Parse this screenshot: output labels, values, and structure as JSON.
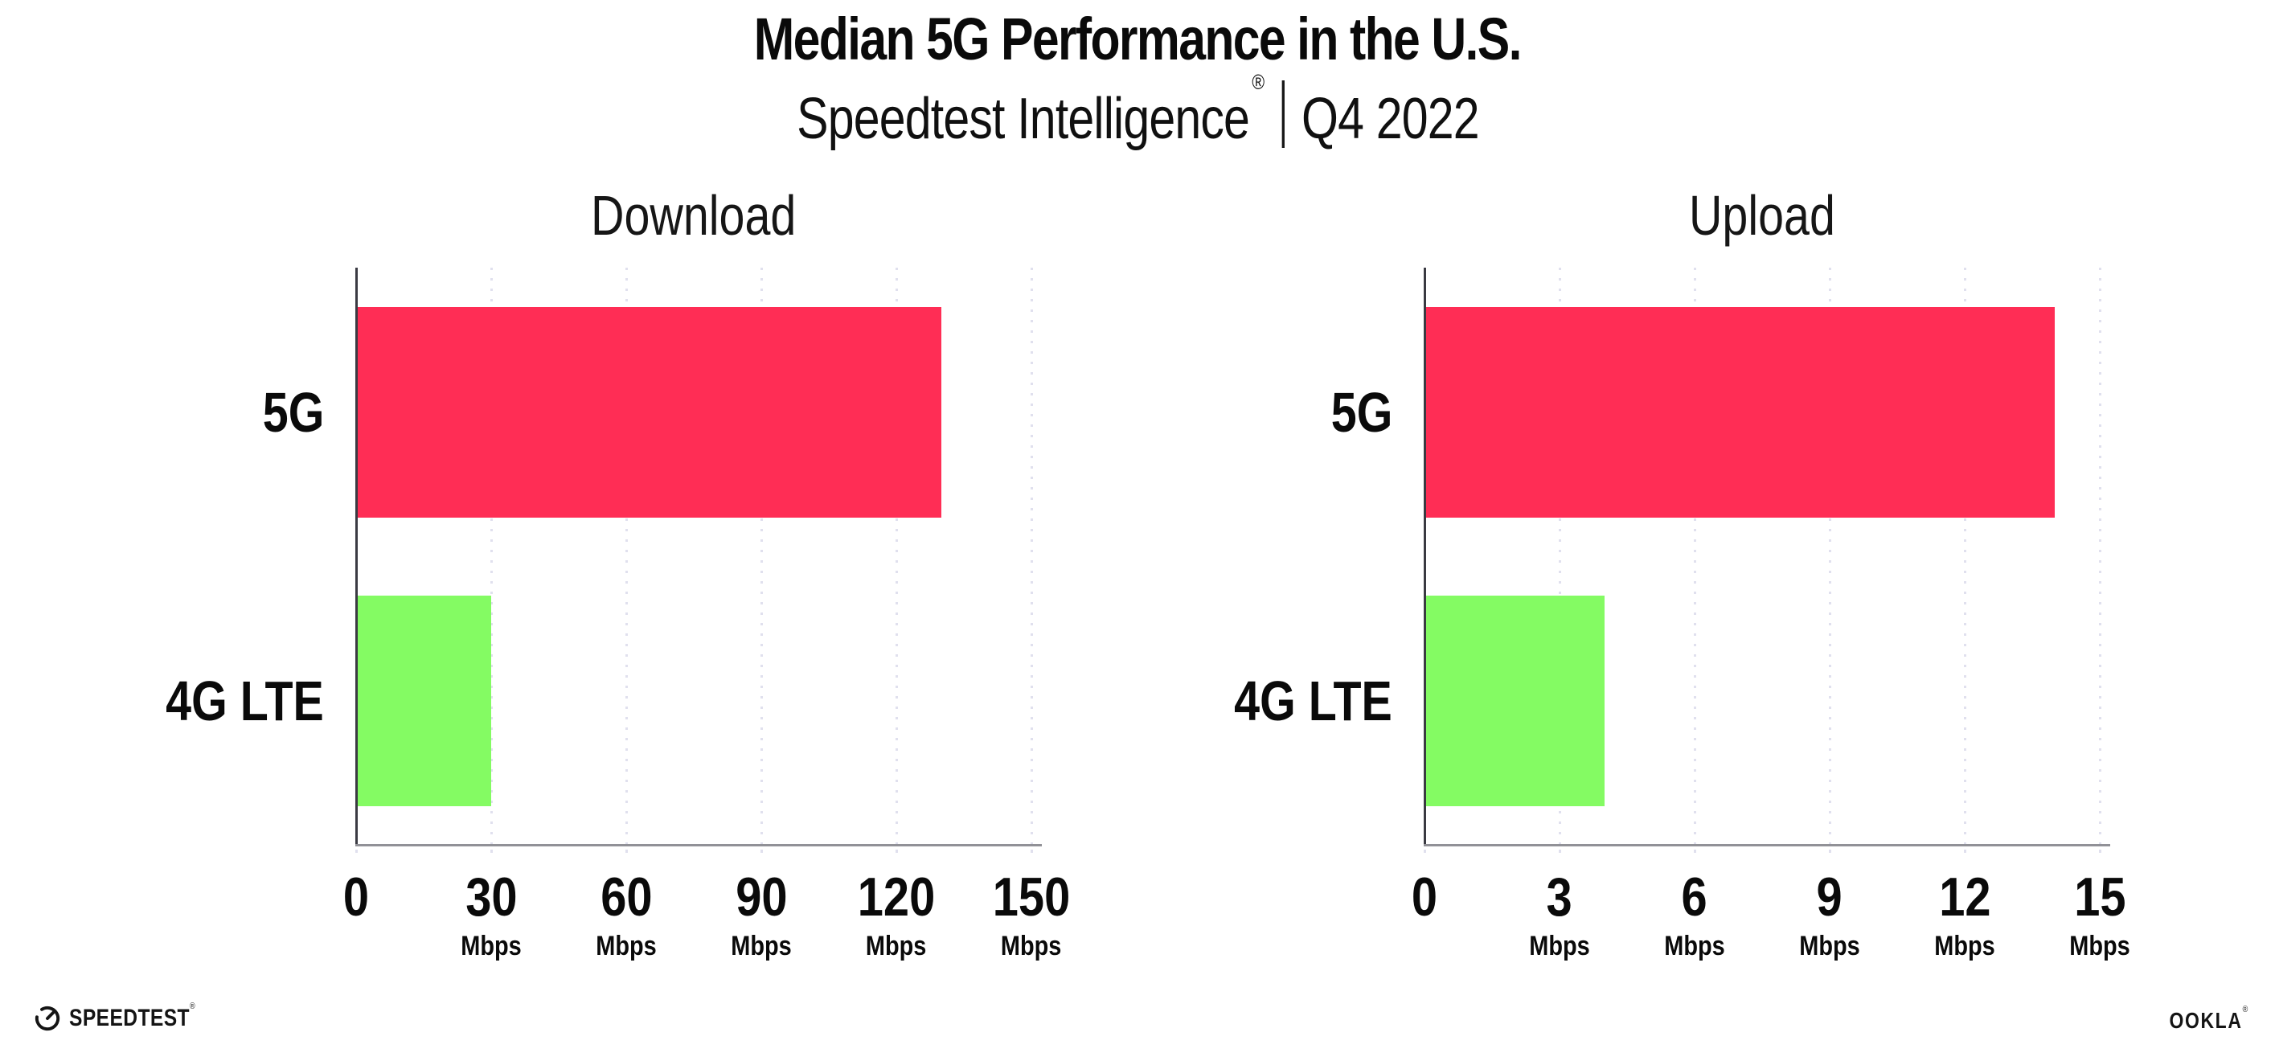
{
  "header": {
    "title": "Median 5G Performance in the U.S.",
    "subtitle_brand": "Speedtest Intelligence",
    "subtitle_registered": "®",
    "subtitle_separator": "|",
    "subtitle_period": "Q4 2022"
  },
  "chart_data": [
    {
      "type": "bar",
      "orientation": "horizontal",
      "title": "Download",
      "categories": [
        "5G",
        "4G LTE"
      ],
      "values": [
        130,
        30
      ],
      "unit": "Mbps",
      "xlim": [
        0,
        150
      ],
      "ticks": [
        0,
        30,
        60,
        90,
        120,
        150
      ],
      "tick_unit": "Mbps",
      "bar_colors": [
        "#FF2D55",
        "#84FB63"
      ],
      "grid": "vertical-dotted",
      "legend": "none"
    },
    {
      "type": "bar",
      "orientation": "horizontal",
      "title": "Upload",
      "categories": [
        "5G",
        "4G LTE"
      ],
      "values": [
        14,
        4
      ],
      "unit": "Mbps",
      "xlim": [
        0,
        15
      ],
      "ticks": [
        0,
        3,
        6,
        9,
        12,
        15
      ],
      "tick_unit": "Mbps",
      "bar_colors": [
        "#FF2D55",
        "#84FB63"
      ],
      "grid": "vertical-dotted",
      "legend": "none"
    }
  ],
  "style": {
    "color_5g": "#FF2D55",
    "color_4g_lte": "#84FB63",
    "gridline_color": "#E0E0EE",
    "axis_color": "#3A3A42",
    "baseline_color": "#919197",
    "text_color": "#0C0C0C",
    "background": "#FFFFFF"
  },
  "footer": {
    "speedtest_wordmark": "SPEEDTEST",
    "speedtest_registered": "®",
    "ookla_wordmark": "OOKLA",
    "ookla_registered": "®"
  }
}
